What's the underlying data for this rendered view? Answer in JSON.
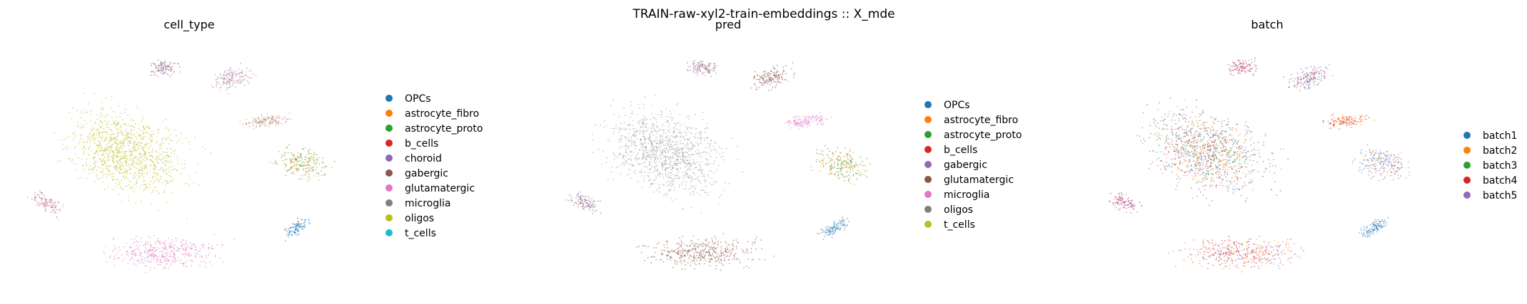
{
  "figure": {
    "suptitle": "TRAIN-raw-xyl2-train-embeddings :: X_mde"
  },
  "chart_data": [
    {
      "type": "scatter",
      "title": "cell_type",
      "xlabel": "",
      "ylabel": "",
      "grid": false,
      "legend_position": "right",
      "categories": [
        "OPCs",
        "astrocyte_fibro",
        "astrocyte_proto",
        "b_cells",
        "choroid",
        "gabergic",
        "glutamatergic",
        "microglia",
        "oligos",
        "t_cells"
      ],
      "colors": [
        "#1f77b4",
        "#ff7f0e",
        "#2ca02c",
        "#d62728",
        "#9467bd",
        "#8c564b",
        "#e377c2",
        "#7f7f7f",
        "#bcbd22",
        "#17becf"
      ]
    },
    {
      "type": "scatter",
      "title": "pred",
      "xlabel": "",
      "ylabel": "",
      "grid": false,
      "legend_position": "right",
      "categories": [
        "OPCs",
        "astrocyte_fibro",
        "astrocyte_proto",
        "b_cells",
        "gabergic",
        "glutamatergic",
        "microglia",
        "oligos",
        "t_cells"
      ],
      "colors": [
        "#1f77b4",
        "#ff7f0e",
        "#2ca02c",
        "#d62728",
        "#9467bd",
        "#8c564b",
        "#e377c2",
        "#7f7f7f",
        "#bcbd22"
      ]
    },
    {
      "type": "scatter",
      "title": "batch",
      "xlabel": "",
      "ylabel": "",
      "grid": false,
      "legend_position": "right",
      "categories": [
        "batch1",
        "batch2",
        "batch3",
        "batch4",
        "batch5"
      ],
      "colors": [
        "#1f77b4",
        "#ff7f0e",
        "#2ca02c",
        "#d62728",
        "#9467bd"
      ]
    }
  ]
}
